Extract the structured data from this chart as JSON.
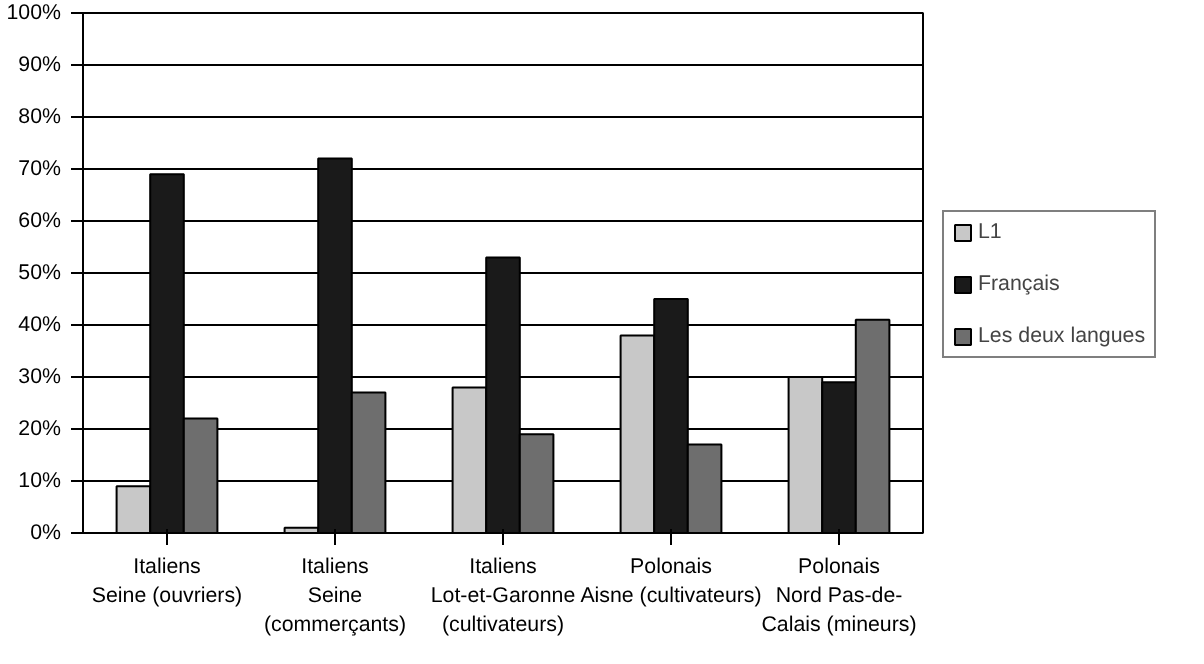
{
  "chart_data": {
    "type": "bar",
    "categories": [
      "Italiens\nSeine (ouvriers)",
      "Italiens\nSeine\n(commerçants)",
      "Italiens\nLot-et-Garonne\n(cultivateurs)",
      "Polonais\nAisne (cultivateurs)",
      "Polonais\nNord Pas-de-\nCalais (mineurs)"
    ],
    "series": [
      {
        "name": "L1",
        "color": "#c8c8c8",
        "values": [
          9,
          1,
          28,
          38,
          30
        ]
      },
      {
        "name": "Français",
        "color": "#1a1a1a",
        "values": [
          69,
          72,
          53,
          45,
          29
        ]
      },
      {
        "name": "Les deux langues",
        "color": "#6e6e6e",
        "values": [
          22,
          27,
          19,
          17,
          41
        ]
      }
    ],
    "ylim": [
      0,
      100
    ],
    "yticks": [
      {
        "value": 0,
        "label": "0%"
      },
      {
        "value": 10,
        "label": "10%"
      },
      {
        "value": 20,
        "label": "20%"
      },
      {
        "value": 30,
        "label": "30%"
      },
      {
        "value": 40,
        "label": "40%"
      },
      {
        "value": 50,
        "label": "50%"
      },
      {
        "value": 60,
        "label": "60%"
      },
      {
        "value": 70,
        "label": "70%"
      },
      {
        "value": 80,
        "label": "80%"
      },
      {
        "value": 90,
        "label": "90%"
      },
      {
        "value": 100,
        "label": "100%"
      }
    ],
    "grid": "y",
    "legend": "right"
  }
}
